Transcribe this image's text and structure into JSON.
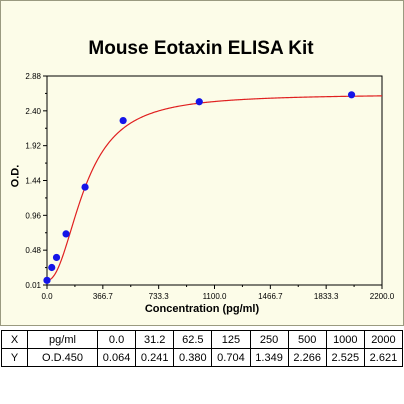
{
  "chart_data": {
    "type": "scatter",
    "title": "Mouse Eotaxin ELISA Kit",
    "xlabel": "Concentration (pg/ml)",
    "ylabel": "O.D.",
    "xlim": [
      0,
      2200
    ],
    "ylim": [
      0,
      2.88
    ],
    "xticks": [
      "0.0",
      "366.7",
      "733.3",
      "1100.0",
      "1466.7",
      "1833.3",
      "2200.0"
    ],
    "yticks": [
      "0.01",
      "0.48",
      "0.96",
      "1.44",
      "1.92",
      "2.40",
      "2.88"
    ],
    "grid": false,
    "series": [
      {
        "x": [
          0,
          31.2,
          62.5,
          125,
          250,
          500,
          1000,
          2000
        ],
        "y": [
          0.064,
          0.241,
          0.38,
          0.704,
          1.349,
          2.266,
          2.525,
          2.621
        ],
        "color": "#1515e8",
        "marker": "circle"
      }
    ],
    "fit_curve": {
      "color": "#e02020"
    }
  },
  "table": {
    "rows": [
      [
        "X",
        "pg/ml",
        "0.0",
        "31.2",
        "62.5",
        "125",
        "250",
        "500",
        "1000",
        "2000"
      ],
      [
        "Y",
        "O.D.450",
        "0.064",
        "0.241",
        "0.380",
        "0.704",
        "1.349",
        "2.266",
        "2.525",
        "2.621"
      ]
    ]
  }
}
